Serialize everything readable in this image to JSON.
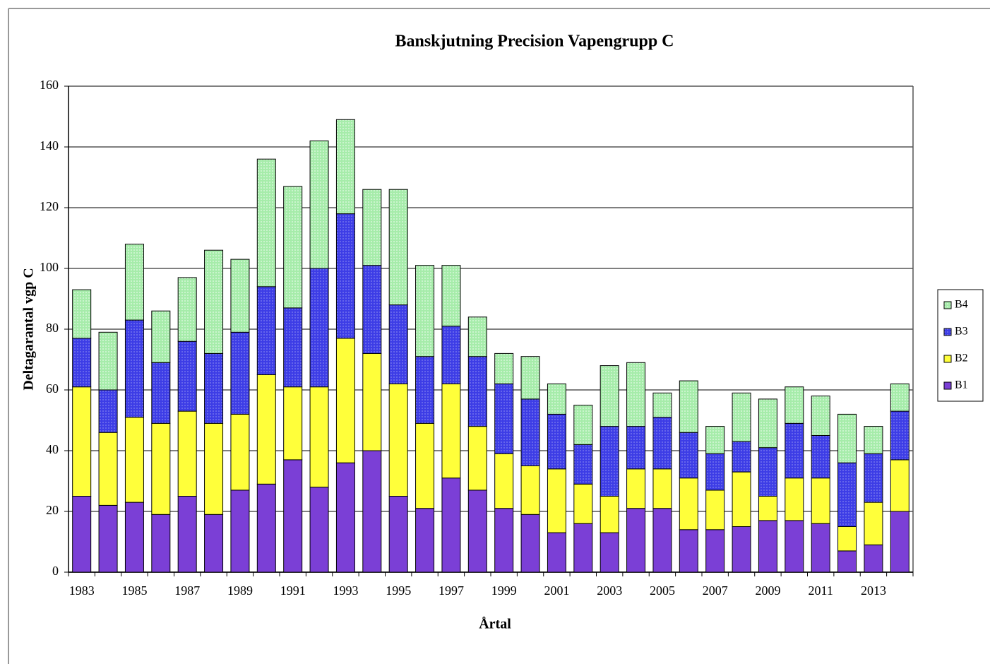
{
  "chart_data": {
    "type": "stacked_bar",
    "title": "Banskjutning Precision Vapengrupp C",
    "x_label": "Årtal",
    "y_label": "Deltagarantal vgp C",
    "categories": [
      "1983",
      null,
      "1985",
      null,
      "1987",
      null,
      "1989",
      null,
      "1991",
      null,
      "1993",
      null,
      "1995",
      null,
      "1997",
      null,
      "1999",
      null,
      "2001",
      null,
      "2003",
      null,
      "2005",
      null,
      "2007",
      null,
      "2009",
      null,
      "2011",
      null,
      "2013",
      null
    ],
    "series": [
      {
        "name": "B1",
        "color": "#7b3fd6",
        "values": [
          25,
          22,
          23,
          19,
          25,
          19,
          27,
          29,
          37,
          28,
          36,
          40,
          25,
          21,
          31,
          27,
          21,
          19,
          13,
          16,
          13,
          21,
          21,
          14,
          14,
          15,
          17,
          17,
          16,
          7,
          9,
          20
        ]
      },
      {
        "name": "B2",
        "color": "#ffff3a",
        "values": [
          36,
          24,
          28,
          30,
          28,
          30,
          25,
          36,
          24,
          33,
          41,
          32,
          37,
          28,
          31,
          21,
          18,
          16,
          21,
          13,
          12,
          13,
          13,
          17,
          13,
          18,
          8,
          14,
          15,
          8,
          14,
          17
        ]
      },
      {
        "name": "B3",
        "color": "#3d3de6",
        "values": [
          16,
          14,
          32,
          20,
          23,
          23,
          27,
          29,
          26,
          39,
          41,
          29,
          26,
          22,
          19,
          23,
          23,
          22,
          18,
          13,
          23,
          14,
          17,
          15,
          12,
          10,
          16,
          18,
          14,
          21,
          16,
          16
        ]
      },
      {
        "name": "B4",
        "color": "#a6ecaa",
        "values": [
          16,
          19,
          25,
          17,
          21,
          34,
          24,
          42,
          40,
          42,
          31,
          25,
          38,
          30,
          20,
          13,
          10,
          14,
          10,
          13,
          20,
          21,
          8,
          17,
          9,
          16,
          16,
          12,
          13,
          16,
          9,
          9
        ]
      }
    ],
    "ylim": [
      0,
      160
    ],
    "yticks": [
      0,
      20,
      40,
      60,
      80,
      100,
      120,
      140,
      160
    ],
    "grid": true,
    "legend": "right"
  }
}
